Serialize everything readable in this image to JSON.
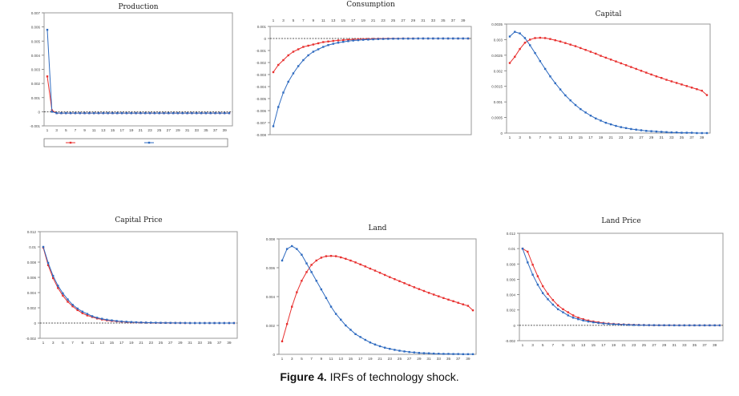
{
  "caption": {
    "label": "Figure 4.",
    "text": "IRFs of technology shock."
  },
  "legend": {
    "series_a": "",
    "series_b": ""
  },
  "colors": {
    "series_a": "#e8302f",
    "series_b": "#2f6bc0",
    "zero_line": "#222222"
  },
  "chart_data": [
    {
      "type": "line",
      "title": "Production",
      "x": [
        1,
        2,
        3,
        4,
        5,
        6,
        7,
        8,
        9,
        10,
        11,
        12,
        13,
        14,
        15,
        16,
        17,
        18,
        19,
        20,
        21,
        22,
        23,
        24,
        25,
        26,
        27,
        28,
        29,
        30,
        31,
        32,
        33,
        34,
        35,
        36,
        37,
        38,
        39,
        40
      ],
      "xticks": [
        1,
        3,
        5,
        7,
        9,
        11,
        13,
        15,
        17,
        19,
        21,
        23,
        25,
        27,
        29,
        31,
        33,
        35,
        37,
        39
      ],
      "ylim": [
        -0.001,
        0.007
      ],
      "yticks": [
        -0.001,
        0,
        0.001,
        0.002,
        0.003,
        0.004,
        0.005,
        0.006,
        0.007
      ],
      "ytick_labels": [
        "-0.001",
        "0",
        "0.001",
        "0.002",
        "0.003",
        "0.004",
        "0.005",
        "0.006",
        "0.007"
      ],
      "series": [
        {
          "values": [
            0.0025,
            0.0001,
            -0.0001,
            -0.0001,
            -0.0001,
            -0.0001,
            -0.0001,
            -0.0001,
            -0.0001,
            -0.0001,
            -0.0001,
            -0.0001,
            -0.0001,
            -0.0001,
            -0.0001,
            -0.0001,
            -0.0001,
            -0.0001,
            -0.0001,
            -0.0001,
            -0.0001,
            -0.0001,
            -0.0001,
            -0.0001,
            -0.0001,
            -0.0001,
            -0.0001,
            -0.0001,
            -0.0001,
            -0.0001,
            -0.0001,
            -0.0001,
            -0.0001,
            -0.0001,
            -0.0001,
            -0.0001,
            -0.0001,
            -0.0001,
            -0.0001,
            -0.0001
          ]
        },
        {
          "values": [
            0.0058,
            0.0,
            -0.0001,
            -0.0001,
            -0.0001,
            -0.0001,
            -0.0001,
            -0.0001,
            -0.0001,
            -0.0001,
            -0.0001,
            -0.0001,
            -0.0001,
            -0.0001,
            -0.0001,
            -0.0001,
            -0.0001,
            -0.0001,
            -0.0001,
            -0.0001,
            -0.0001,
            -0.0001,
            -0.0001,
            -0.0001,
            -0.0001,
            -0.0001,
            -0.0001,
            -0.0001,
            -0.0001,
            -0.0001,
            -0.0001,
            -0.0001,
            -0.0001,
            -0.0001,
            -0.0001,
            -0.0001,
            -0.0001,
            -0.0001,
            -0.0001,
            -0.0001
          ]
        }
      ]
    },
    {
      "type": "line",
      "title": "Consumption",
      "x": [
        1,
        2,
        3,
        4,
        5,
        6,
        7,
        8,
        9,
        10,
        11,
        12,
        13,
        14,
        15,
        16,
        17,
        18,
        19,
        20,
        21,
        22,
        23,
        24,
        25,
        26,
        27,
        28,
        29,
        30,
        31,
        32,
        33,
        34,
        35,
        36,
        37,
        38,
        39,
        40
      ],
      "xticks": [
        1,
        3,
        5,
        7,
        9,
        11,
        13,
        15,
        17,
        19,
        21,
        23,
        25,
        27,
        29,
        31,
        33,
        35,
        37,
        39
      ],
      "xaxis_position": "top",
      "ylim": [
        -0.008,
        0.001
      ],
      "yticks": [
        -0.008,
        -0.007,
        -0.006,
        -0.005,
        -0.004,
        -0.003,
        -0.002,
        -0.001,
        0,
        0.001
      ],
      "ytick_labels": [
        "-0.008",
        "-0.007",
        "-0.006",
        "-0.005",
        "-0.004",
        "-0.003",
        "-0.002",
        "-0.001",
        "0",
        "0.001"
      ],
      "series": [
        {
          "values": [
            -0.0028,
            -0.0022,
            -0.0018,
            -0.0014,
            -0.0011,
            -0.0009,
            -0.0007,
            -0.0006,
            -0.0005,
            -0.0004,
            -0.0003,
            -0.00025,
            -0.0002,
            -0.00016,
            -0.00013,
            -0.0001,
            -8e-05,
            -6e-05,
            -5e-05,
            -4e-05,
            -3e-05,
            -2e-05,
            -2e-05,
            -1e-05,
            -1e-05,
            -1e-05,
            0,
            0,
            0,
            0,
            0,
            0,
            0,
            0,
            0,
            0,
            0,
            0,
            0,
            0
          ]
        },
        {
          "values": [
            -0.0073,
            -0.0057,
            -0.0045,
            -0.0036,
            -0.0029,
            -0.0023,
            -0.0018,
            -0.0014,
            -0.0011,
            -0.0009,
            -0.0007,
            -0.00055,
            -0.00044,
            -0.00035,
            -0.00028,
            -0.00022,
            -0.00017,
            -0.00014,
            -0.00011,
            -9e-05,
            -7e-05,
            -5e-05,
            -4e-05,
            -3e-05,
            -2e-05,
            -2e-05,
            -1e-05,
            -1e-05,
            -1e-05,
            0,
            0,
            0,
            0,
            0,
            0,
            0,
            0,
            0,
            0,
            0
          ]
        }
      ]
    },
    {
      "type": "line",
      "title": "Capital",
      "x": [
        1,
        2,
        3,
        4,
        5,
        6,
        7,
        8,
        9,
        10,
        11,
        12,
        13,
        14,
        15,
        16,
        17,
        18,
        19,
        20,
        21,
        22,
        23,
        24,
        25,
        26,
        27,
        28,
        29,
        30,
        31,
        32,
        33,
        34,
        35,
        36,
        37,
        38,
        39,
        40
      ],
      "xticks": [
        1,
        3,
        5,
        7,
        9,
        11,
        13,
        15,
        17,
        19,
        21,
        23,
        25,
        27,
        29,
        31,
        33,
        35,
        37,
        39
      ],
      "ylim": [
        0,
        0.0035
      ],
      "yticks": [
        0,
        0.0005,
        0.001,
        0.0015,
        0.002,
        0.0025,
        0.003,
        0.0035
      ],
      "ytick_labels": [
        "0",
        "0.0005",
        "0.001",
        "0.0015",
        "0.002",
        "0.0025",
        "0.003",
        "0.0035"
      ],
      "series": [
        {
          "values": [
            0.00225,
            0.00245,
            0.0027,
            0.0029,
            0.003,
            0.00305,
            0.00306,
            0.00305,
            0.00302,
            0.00298,
            0.00294,
            0.00289,
            0.00284,
            0.00279,
            0.00273,
            0.00267,
            0.00261,
            0.00255,
            0.00248,
            0.00242,
            0.00236,
            0.0023,
            0.00224,
            0.00218,
            0.00212,
            0.00206,
            0.002,
            0.00194,
            0.00188,
            0.00182,
            0.00177,
            0.00171,
            0.00166,
            0.00161,
            0.00156,
            0.00151,
            0.00146,
            0.00141,
            0.00136,
            0.00122
          ]
        },
        {
          "values": [
            0.0031,
            0.00325,
            0.0032,
            0.00305,
            0.00282,
            0.00257,
            0.00231,
            0.00206,
            0.00182,
            0.0016,
            0.0014,
            0.00121,
            0.00105,
            0.0009,
            0.00077,
            0.00066,
            0.00056,
            0.00047,
            0.0004,
            0.00033,
            0.00028,
            0.00023,
            0.00019,
            0.00016,
            0.00013,
            0.00011,
            9e-05,
            7e-05,
            6e-05,
            5e-05,
            4e-05,
            3e-05,
            2e-05,
            2e-05,
            1e-05,
            1e-05,
            1e-05,
            0,
            0,
            0
          ]
        }
      ]
    },
    {
      "type": "line",
      "title": "Capital  Price",
      "x": [
        1,
        2,
        3,
        4,
        5,
        6,
        7,
        8,
        9,
        10,
        11,
        12,
        13,
        14,
        15,
        16,
        17,
        18,
        19,
        20,
        21,
        22,
        23,
        24,
        25,
        26,
        27,
        28,
        29,
        30,
        31,
        32,
        33,
        34,
        35,
        36,
        37,
        38,
        39,
        40
      ],
      "xticks": [
        1,
        3,
        5,
        7,
        9,
        11,
        13,
        15,
        17,
        19,
        21,
        23,
        25,
        27,
        29,
        31,
        33,
        35,
        37,
        39
      ],
      "ylim": [
        -0.002,
        0.012
      ],
      "yticks": [
        -0.002,
        0,
        0.002,
        0.004,
        0.006,
        0.008,
        0.01,
        0.012
      ],
      "ytick_labels": [
        "-0.002",
        "0",
        "0.002",
        "0.004",
        "0.006",
        "0.008",
        "0.01",
        "0.012"
      ],
      "series": [
        {
          "values": [
            0.0099,
            0.0076,
            0.0059,
            0.0046,
            0.0036,
            0.0028,
            0.0022,
            0.0017,
            0.0013,
            0.001,
            0.0008,
            0.0006,
            0.00047,
            0.00036,
            0.00028,
            0.00022,
            0.00017,
            0.00013,
            0.0001,
            8e-05,
            6e-05,
            5e-05,
            4e-05,
            3e-05,
            2e-05,
            2e-05,
            1e-05,
            1e-05,
            1e-05,
            0,
            0,
            0,
            0,
            0,
            0,
            0,
            0,
            0,
            0,
            0
          ]
        },
        {
          "values": [
            0.01,
            0.0079,
            0.0062,
            0.0049,
            0.0039,
            0.0031,
            0.0024,
            0.0019,
            0.0015,
            0.0012,
            0.0009,
            0.0007,
            0.00056,
            0.00044,
            0.00035,
            0.00027,
            0.00021,
            0.00017,
            0.00013,
            0.0001,
            8e-05,
            6e-05,
            5e-05,
            4e-05,
            3e-05,
            2e-05,
            2e-05,
            1e-05,
            1e-05,
            1e-05,
            0,
            0,
            0,
            0,
            0,
            0,
            0,
            0,
            0,
            0
          ]
        }
      ]
    },
    {
      "type": "line",
      "title": "Land",
      "x": [
        1,
        2,
        3,
        4,
        5,
        6,
        7,
        8,
        9,
        10,
        11,
        12,
        13,
        14,
        15,
        16,
        17,
        18,
        19,
        20,
        21,
        22,
        23,
        24,
        25,
        26,
        27,
        28,
        29,
        30,
        31,
        32,
        33,
        34,
        35,
        36,
        37,
        38,
        39,
        40
      ],
      "xticks": [
        1,
        3,
        5,
        7,
        9,
        11,
        13,
        15,
        17,
        19,
        21,
        23,
        25,
        27,
        29,
        31,
        33,
        35,
        37,
        39
      ],
      "ylim": [
        0,
        0.008
      ],
      "yticks": [
        0,
        0.002,
        0.004,
        0.006,
        0.008
      ],
      "ytick_labels": [
        "0",
        "0.002",
        "0.004",
        "0.006",
        "0.008"
      ],
      "series": [
        {
          "values": [
            0.0009,
            0.0021,
            0.0033,
            0.0043,
            0.0051,
            0.0057,
            0.0062,
            0.0065,
            0.0067,
            0.0068,
            0.00682,
            0.0068,
            0.00672,
            0.00662,
            0.0065,
            0.00637,
            0.00623,
            0.00609,
            0.00594,
            0.0058,
            0.00565,
            0.0055,
            0.00535,
            0.00521,
            0.00507,
            0.00493,
            0.00479,
            0.00465,
            0.00452,
            0.00439,
            0.00426,
            0.00414,
            0.00402,
            0.0039,
            0.00379,
            0.00368,
            0.00357,
            0.00346,
            0.00336,
            0.00305
          ]
        },
        {
          "values": [
            0.0065,
            0.0073,
            0.0075,
            0.0073,
            0.0069,
            0.0063,
            0.0057,
            0.0051,
            0.0045,
            0.0039,
            0.0033,
            0.0028,
            0.0024,
            0.002,
            0.0017,
            0.0014,
            0.0012,
            0.001,
            0.00082,
            0.00068,
            0.00056,
            0.00046,
            0.00038,
            0.00031,
            0.00025,
            0.0002,
            0.00016,
            0.00013,
            0.0001,
            8e-05,
            7e-05,
            5e-05,
            4e-05,
            3e-05,
            3e-05,
            2e-05,
            2e-05,
            1e-05,
            1e-05,
            1e-05
          ]
        }
      ]
    },
    {
      "type": "line",
      "title": "Land  Price",
      "x": [
        1,
        2,
        3,
        4,
        5,
        6,
        7,
        8,
        9,
        10,
        11,
        12,
        13,
        14,
        15,
        16,
        17,
        18,
        19,
        20,
        21,
        22,
        23,
        24,
        25,
        26,
        27,
        28,
        29,
        30,
        31,
        32,
        33,
        34,
        35,
        36,
        37,
        38,
        39,
        40
      ],
      "xticks": [
        1,
        3,
        5,
        7,
        9,
        11,
        13,
        15,
        17,
        19,
        21,
        23,
        25,
        27,
        29,
        31,
        33,
        35,
        37,
        39
      ],
      "ylim": [
        -0.002,
        0.012
      ],
      "yticks": [
        -0.002,
        0,
        0.002,
        0.004,
        0.006,
        0.008,
        0.01,
        0.012
      ],
      "ytick_labels": [
        "-0.002",
        "0",
        "0.002",
        "0.004",
        "0.006",
        "0.008",
        "0.01",
        "0.012"
      ],
      "series": [
        {
          "values": [
            0.01,
            0.0096,
            0.0079,
            0.0064,
            0.0051,
            0.0041,
            0.0033,
            0.0026,
            0.0021,
            0.0017,
            0.0013,
            0.001,
            0.0008,
            0.00063,
            0.0005,
            0.0004,
            0.00031,
            0.00024,
            0.00019,
            0.00015,
            0.00012,
            9e-05,
            7e-05,
            5e-05,
            4e-05,
            3e-05,
            2e-05,
            2e-05,
            1e-05,
            1e-05,
            1e-05,
            0,
            0,
            0,
            0,
            0,
            0,
            0,
            0,
            0
          ]
        },
        {
          "values": [
            0.01,
            0.0082,
            0.0066,
            0.0053,
            0.0042,
            0.0034,
            0.0027,
            0.0021,
            0.0017,
            0.0013,
            0.001,
            0.0008,
            0.00063,
            0.0005,
            0.00039,
            0.00031,
            0.00024,
            0.00019,
            0.00015,
            0.00012,
            9e-05,
            7e-05,
            5e-05,
            4e-05,
            3e-05,
            2e-05,
            2e-05,
            1e-05,
            1e-05,
            1e-05,
            0,
            0,
            0,
            0,
            0,
            0,
            0,
            0,
            0,
            0
          ]
        }
      ]
    }
  ]
}
